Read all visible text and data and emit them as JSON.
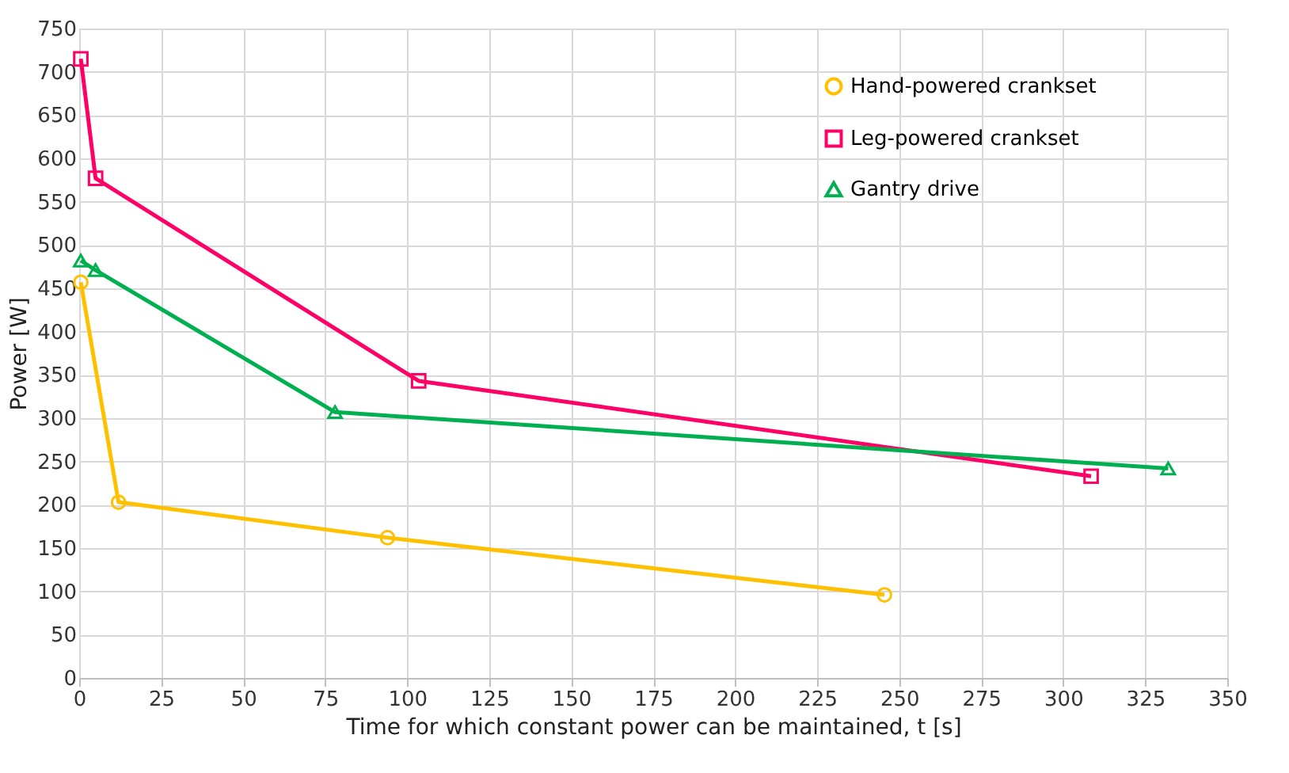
{
  "chart_data": {
    "type": "line",
    "xlabel": "Time for which constant power can be maintained, t [s]",
    "ylabel": "Power [W]",
    "xlim": [
      0,
      350
    ],
    "xticks": [
      0,
      25,
      50,
      75,
      100,
      125,
      150,
      175,
      200,
      225,
      250,
      275,
      300,
      325,
      350
    ],
    "ylim": [
      0,
      750
    ],
    "yticks": [
      0,
      50,
      100,
      150,
      200,
      250,
      300,
      350,
      400,
      450,
      500,
      550,
      600,
      650,
      700,
      750
    ],
    "grid": true,
    "legend": "top right",
    "series": [
      {
        "name": "Hand-powered crankset",
        "color": "#ffc000",
        "marker": "circle",
        "x": [
          0.5,
          12,
          94,
          245.5
        ],
        "values": [
          457,
          203,
          162,
          96
        ]
      },
      {
        "name": "Leg-powered crankset",
        "color": "#ff0066",
        "marker": "square",
        "x": [
          0.5,
          5,
          103.5,
          308.5
        ],
        "values": [
          715,
          577,
          343,
          233
        ]
      },
      {
        "name": "Gantry drive",
        "color": "#00b050",
        "marker": "triangle",
        "x": [
          0.5,
          5,
          78,
          332
        ],
        "values": [
          482,
          471,
          307,
          242
        ]
      }
    ]
  }
}
